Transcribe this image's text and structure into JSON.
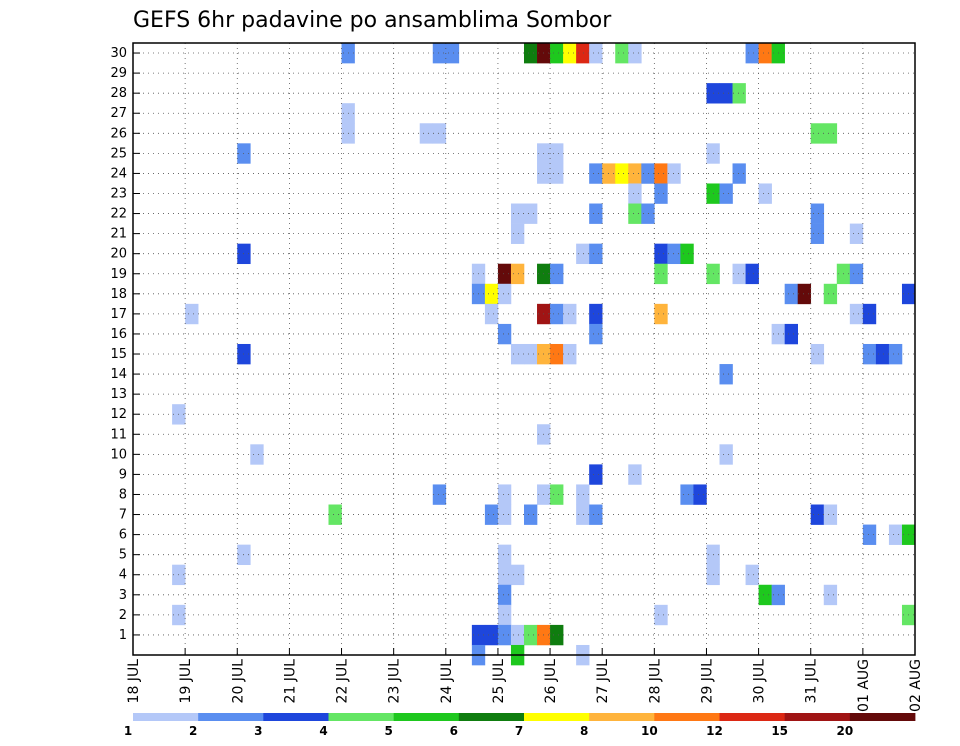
{
  "chart_data": {
    "type": "heatmap",
    "title": "GEFS 6hr padavine po ansamblima Sombor",
    "xlabel": "",
    "ylabel": "",
    "x_ticks": [
      "18 JUL",
      "19 JUL",
      "20 JUL",
      "21 JUL",
      "22 JUL",
      "23 JUL",
      "24 JUL",
      "25 JUL",
      "26 JUL",
      "27 JUL",
      "28 JUL",
      "29 JUL",
      "30 JUL",
      "31 JUL",
      "01 AUG",
      "02 AUG"
    ],
    "y_ticks": [
      "1",
      "2",
      "3",
      "4",
      "5",
      "6",
      "7",
      "8",
      "9",
      "10",
      "11",
      "12",
      "13",
      "14",
      "15",
      "16",
      "17",
      "18",
      "19",
      "20",
      "21",
      "22",
      "23",
      "24",
      "25",
      "26",
      "27",
      "28",
      "29",
      "30"
    ],
    "xlim_steps": [
      0,
      60
    ],
    "ylim_members": [
      0,
      30
    ],
    "grid": true,
    "colorbar": {
      "levels": [
        "1",
        "2",
        "3",
        "4",
        "5",
        "6",
        "7",
        "8",
        "10",
        "12",
        "15",
        "20"
      ],
      "colors": [
        "#b4c8f8",
        "#5a8ef0",
        "#1e46dc",
        "#64e664",
        "#1ec81e",
        "#0f7d0f",
        "#ffff00",
        "#ffb43c",
        "#ff7814",
        "#dc2814",
        "#a01414",
        "#640a0a"
      ]
    },
    "cells": [
      {
        "member": 30,
        "step": 16,
        "bin": 1
      },
      {
        "member": 30,
        "step": 23,
        "bin": 1
      },
      {
        "member": 30,
        "step": 24,
        "bin": 1
      },
      {
        "member": 30,
        "step": 30,
        "bin": 5
      },
      {
        "member": 30,
        "step": 31,
        "bin": 11
      },
      {
        "member": 30,
        "step": 32,
        "bin": 4
      },
      {
        "member": 30,
        "step": 33,
        "bin": 6
      },
      {
        "member": 30,
        "step": 34,
        "bin": 9
      },
      {
        "member": 30,
        "step": 35,
        "bin": 0
      },
      {
        "member": 30,
        "step": 37,
        "bin": 3
      },
      {
        "member": 30,
        "step": 38,
        "bin": 0
      },
      {
        "member": 30,
        "step": 47,
        "bin": 1
      },
      {
        "member": 30,
        "step": 48,
        "bin": 8
      },
      {
        "member": 30,
        "step": 49,
        "bin": 4
      },
      {
        "member": 28,
        "step": 44,
        "bin": 2
      },
      {
        "member": 28,
        "step": 45,
        "bin": 2
      },
      {
        "member": 28,
        "step": 46,
        "bin": 3
      },
      {
        "member": 27,
        "step": 16,
        "bin": 0
      },
      {
        "member": 26,
        "step": 16,
        "bin": 0
      },
      {
        "member": 26,
        "step": 22,
        "bin": 0
      },
      {
        "member": 26,
        "step": 23,
        "bin": 0
      },
      {
        "member": 26,
        "step": 52,
        "bin": 3
      },
      {
        "member": 26,
        "step": 53,
        "bin": 3
      },
      {
        "member": 25,
        "step": 8,
        "bin": 1
      },
      {
        "member": 25,
        "step": 31,
        "bin": 0
      },
      {
        "member": 25,
        "step": 32,
        "bin": 0
      },
      {
        "member": 25,
        "step": 44,
        "bin": 0
      },
      {
        "member": 24,
        "step": 31,
        "bin": 0
      },
      {
        "member": 24,
        "step": 32,
        "bin": 0
      },
      {
        "member": 24,
        "step": 35,
        "bin": 1
      },
      {
        "member": 24,
        "step": 36,
        "bin": 7
      },
      {
        "member": 24,
        "step": 37,
        "bin": 6
      },
      {
        "member": 24,
        "step": 38,
        "bin": 7
      },
      {
        "member": 24,
        "step": 39,
        "bin": 1
      },
      {
        "member": 24,
        "step": 40,
        "bin": 8
      },
      {
        "member": 24,
        "step": 41,
        "bin": 0
      },
      {
        "member": 24,
        "step": 46,
        "bin": 1
      },
      {
        "member": 23,
        "step": 38,
        "bin": 0
      },
      {
        "member": 23,
        "step": 40,
        "bin": 1
      },
      {
        "member": 23,
        "step": 44,
        "bin": 4
      },
      {
        "member": 23,
        "step": 45,
        "bin": 1
      },
      {
        "member": 23,
        "step": 48,
        "bin": 0
      },
      {
        "member": 22,
        "step": 29,
        "bin": 0
      },
      {
        "member": 22,
        "step": 30,
        "bin": 0
      },
      {
        "member": 22,
        "step": 35,
        "bin": 1
      },
      {
        "member": 22,
        "step": 38,
        "bin": 3
      },
      {
        "member": 22,
        "step": 39,
        "bin": 1
      },
      {
        "member": 22,
        "step": 52,
        "bin": 1
      },
      {
        "member": 21,
        "step": 29,
        "bin": 0
      },
      {
        "member": 21,
        "step": 52,
        "bin": 1
      },
      {
        "member": 21,
        "step": 55,
        "bin": 0
      },
      {
        "member": 20,
        "step": 8,
        "bin": 2
      },
      {
        "member": 20,
        "step": 34,
        "bin": 0
      },
      {
        "member": 20,
        "step": 35,
        "bin": 1
      },
      {
        "member": 20,
        "step": 40,
        "bin": 2
      },
      {
        "member": 20,
        "step": 41,
        "bin": 1
      },
      {
        "member": 20,
        "step": 42,
        "bin": 4
      },
      {
        "member": 19,
        "step": 26,
        "bin": 0
      },
      {
        "member": 19,
        "step": 28,
        "bin": 11
      },
      {
        "member": 19,
        "step": 29,
        "bin": 7
      },
      {
        "member": 19,
        "step": 31,
        "bin": 5
      },
      {
        "member": 19,
        "step": 32,
        "bin": 1
      },
      {
        "member": 19,
        "step": 40,
        "bin": 3
      },
      {
        "member": 19,
        "step": 44,
        "bin": 3
      },
      {
        "member": 19,
        "step": 46,
        "bin": 0
      },
      {
        "member": 19,
        "step": 47,
        "bin": 2
      },
      {
        "member": 19,
        "step": 54,
        "bin": 3
      },
      {
        "member": 19,
        "step": 55,
        "bin": 1
      },
      {
        "member": 18,
        "step": 26,
        "bin": 1
      },
      {
        "member": 18,
        "step": 27,
        "bin": 6
      },
      {
        "member": 18,
        "step": 28,
        "bin": 0
      },
      {
        "member": 18,
        "step": 50,
        "bin": 1
      },
      {
        "member": 18,
        "step": 51,
        "bin": 11
      },
      {
        "member": 18,
        "step": 53,
        "bin": 3
      },
      {
        "member": 18,
        "step": 59,
        "bin": 2
      },
      {
        "member": 17,
        "step": 4,
        "bin": 0
      },
      {
        "member": 17,
        "step": 27,
        "bin": 0
      },
      {
        "member": 17,
        "step": 31,
        "bin": 10
      },
      {
        "member": 17,
        "step": 32,
        "bin": 1
      },
      {
        "member": 17,
        "step": 33,
        "bin": 0
      },
      {
        "member": 17,
        "step": 35,
        "bin": 2
      },
      {
        "member": 17,
        "step": 40,
        "bin": 7
      },
      {
        "member": 17,
        "step": 55,
        "bin": 0
      },
      {
        "member": 17,
        "step": 56,
        "bin": 2
      },
      {
        "member": 16,
        "step": 28,
        "bin": 1
      },
      {
        "member": 16,
        "step": 35,
        "bin": 1
      },
      {
        "member": 16,
        "step": 49,
        "bin": 0
      },
      {
        "member": 16,
        "step": 50,
        "bin": 2
      },
      {
        "member": 15,
        "step": 8,
        "bin": 2
      },
      {
        "member": 15,
        "step": 29,
        "bin": 0
      },
      {
        "member": 15,
        "step": 30,
        "bin": 0
      },
      {
        "member": 15,
        "step": 31,
        "bin": 7
      },
      {
        "member": 15,
        "step": 32,
        "bin": 8
      },
      {
        "member": 15,
        "step": 33,
        "bin": 0
      },
      {
        "member": 15,
        "step": 52,
        "bin": 0
      },
      {
        "member": 15,
        "step": 56,
        "bin": 1
      },
      {
        "member": 15,
        "step": 57,
        "bin": 2
      },
      {
        "member": 15,
        "step": 58,
        "bin": 1
      },
      {
        "member": 14,
        "step": 45,
        "bin": 1
      },
      {
        "member": 12,
        "step": 3,
        "bin": 0
      },
      {
        "member": 11,
        "step": 31,
        "bin": 0
      },
      {
        "member": 10,
        "step": 9,
        "bin": 0
      },
      {
        "member": 10,
        "step": 45,
        "bin": 0
      },
      {
        "member": 9,
        "step": 35,
        "bin": 2
      },
      {
        "member": 9,
        "step": 38,
        "bin": 0
      },
      {
        "member": 8,
        "step": 23,
        "bin": 1
      },
      {
        "member": 8,
        "step": 28,
        "bin": 0
      },
      {
        "member": 8,
        "step": 31,
        "bin": 0
      },
      {
        "member": 8,
        "step": 32,
        "bin": 3
      },
      {
        "member": 8,
        "step": 34,
        "bin": 0
      },
      {
        "member": 8,
        "step": 42,
        "bin": 1
      },
      {
        "member": 8,
        "step": 43,
        "bin": 2
      },
      {
        "member": 7,
        "step": 15,
        "bin": 3
      },
      {
        "member": 7,
        "step": 27,
        "bin": 1
      },
      {
        "member": 7,
        "step": 28,
        "bin": 0
      },
      {
        "member": 7,
        "step": 30,
        "bin": 1
      },
      {
        "member": 7,
        "step": 34,
        "bin": 0
      },
      {
        "member": 7,
        "step": 35,
        "bin": 1
      },
      {
        "member": 7,
        "step": 52,
        "bin": 2
      },
      {
        "member": 7,
        "step": 53,
        "bin": 0
      },
      {
        "member": 6,
        "step": 56,
        "bin": 1
      },
      {
        "member": 6,
        "step": 58,
        "bin": 0
      },
      {
        "member": 6,
        "step": 59,
        "bin": 4
      },
      {
        "member": 5,
        "step": 8,
        "bin": 0
      },
      {
        "member": 5,
        "step": 28,
        "bin": 0
      },
      {
        "member": 5,
        "step": 44,
        "bin": 0
      },
      {
        "member": 4,
        "step": 3,
        "bin": 0
      },
      {
        "member": 4,
        "step": 28,
        "bin": 0
      },
      {
        "member": 4,
        "step": 29,
        "bin": 0
      },
      {
        "member": 4,
        "step": 44,
        "bin": 0
      },
      {
        "member": 4,
        "step": 47,
        "bin": 0
      },
      {
        "member": 3,
        "step": 28,
        "bin": 1
      },
      {
        "member": 3,
        "step": 48,
        "bin": 4
      },
      {
        "member": 3,
        "step": 49,
        "bin": 1
      },
      {
        "member": 3,
        "step": 53,
        "bin": 0
      },
      {
        "member": 2,
        "step": 3,
        "bin": 0
      },
      {
        "member": 2,
        "step": 28,
        "bin": 0
      },
      {
        "member": 2,
        "step": 40,
        "bin": 0
      },
      {
        "member": 2,
        "step": 59,
        "bin": 3
      },
      {
        "member": 1,
        "step": 26,
        "bin": 2
      },
      {
        "member": 1,
        "step": 27,
        "bin": 2
      },
      {
        "member": 1,
        "step": 28,
        "bin": 1
      },
      {
        "member": 1,
        "step": 29,
        "bin": 0
      },
      {
        "member": 1,
        "step": 30,
        "bin": 3
      },
      {
        "member": 1,
        "step": 31,
        "bin": 8
      },
      {
        "member": 1,
        "step": 32,
        "bin": 5
      },
      {
        "member": 0,
        "step": 26,
        "bin": 1
      },
      {
        "member": 0,
        "step": 29,
        "bin": 4
      },
      {
        "member": 0,
        "step": 34,
        "bin": 0
      }
    ]
  }
}
